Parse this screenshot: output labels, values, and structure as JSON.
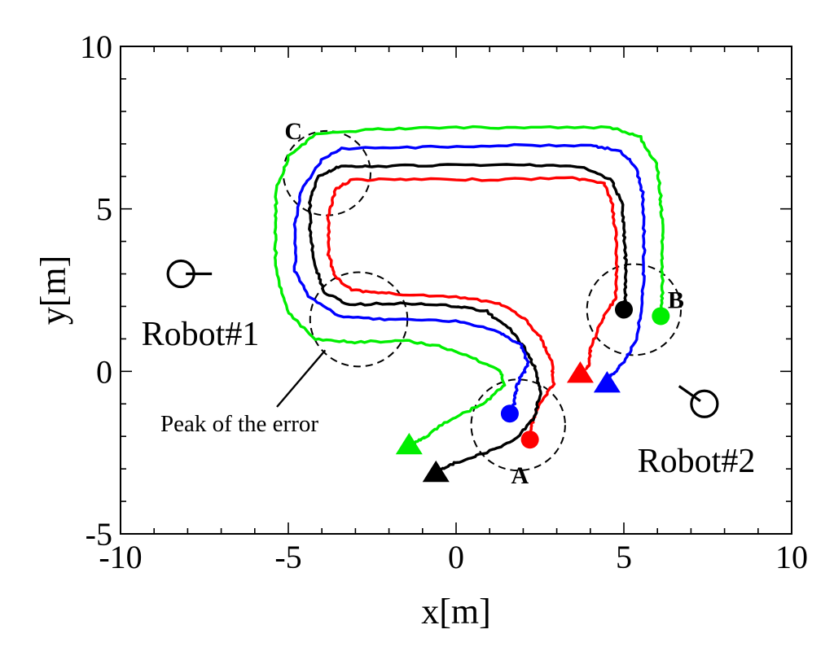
{
  "chart_data": {
    "type": "line",
    "xlabel": "x[m]",
    "ylabel": "y[m]",
    "xlim": [
      -10,
      10
    ],
    "ylim": [
      -5,
      10
    ],
    "xticks": [
      -10,
      -5,
      0,
      5,
      10
    ],
    "yticks": [
      -5,
      0,
      5,
      10
    ],
    "xtick_labels": [
      "-10",
      "-5",
      "0",
      "5",
      "10"
    ],
    "ytick_labels": [
      "-5",
      "0",
      "5",
      "10"
    ],
    "grid": false,
    "series": [
      {
        "color": "#ff0000",
        "points": [
          [
            2.2,
            -2.1
          ],
          [
            2.25,
            -1.6
          ],
          [
            2.5,
            -1.0
          ],
          [
            2.9,
            -0.4
          ],
          [
            2.85,
            0.3
          ],
          [
            2.55,
            1.0
          ],
          [
            2.05,
            1.6
          ],
          [
            1.3,
            2.1
          ],
          [
            0.0,
            2.3
          ],
          [
            -2.0,
            2.4
          ],
          [
            -3.1,
            2.5
          ],
          [
            -3.6,
            2.9
          ],
          [
            -3.8,
            3.6
          ],
          [
            -3.8,
            4.8
          ],
          [
            -3.6,
            5.6
          ],
          [
            -3.1,
            5.9
          ],
          [
            -1.5,
            5.9
          ],
          [
            1.0,
            5.9
          ],
          [
            3.5,
            5.95
          ],
          [
            4.4,
            5.8
          ],
          [
            4.65,
            5.2
          ],
          [
            4.75,
            4.3
          ],
          [
            4.8,
            3.2
          ],
          [
            4.75,
            2.2
          ],
          [
            4.35,
            1.6
          ],
          [
            4.0,
            0.7
          ],
          [
            3.95,
            0.2
          ],
          [
            3.9,
            0.05
          ]
        ],
        "start_marker": [
          2.2,
          -2.1
        ],
        "end_marker": [
          3.7,
          -0.05
        ]
      },
      {
        "color": "#000000",
        "points": [
          [
            5.0,
            1.9
          ],
          [
            5.05,
            2.4
          ],
          [
            5.05,
            3.4
          ],
          [
            5.0,
            4.4
          ],
          [
            4.95,
            5.2
          ],
          [
            4.6,
            5.9
          ],
          [
            3.8,
            6.3
          ],
          [
            2.0,
            6.35
          ],
          [
            -0.5,
            6.35
          ],
          [
            -2.5,
            6.3
          ],
          [
            -3.5,
            6.3
          ],
          [
            -4.1,
            6.0
          ],
          [
            -4.35,
            5.3
          ],
          [
            -4.35,
            4.3
          ],
          [
            -4.2,
            3.2
          ],
          [
            -3.9,
            2.4
          ],
          [
            -3.2,
            2.05
          ],
          [
            -1.5,
            2.1
          ],
          [
            0.0,
            2.0
          ],
          [
            0.9,
            1.85
          ],
          [
            1.6,
            1.3
          ],
          [
            2.05,
            0.7
          ],
          [
            2.4,
            0.0
          ],
          [
            2.5,
            -0.7
          ],
          [
            2.35,
            -1.4
          ],
          [
            1.75,
            -2.1
          ],
          [
            0.9,
            -2.5
          ],
          [
            0.0,
            -2.8
          ],
          [
            -0.5,
            -3.05
          ]
        ],
        "start_marker": [
          5.0,
          1.9
        ],
        "end_marker": [
          -0.6,
          -3.1
        ]
      },
      {
        "color": "#0000ff",
        "points": [
          [
            1.7,
            -1.3
          ],
          [
            1.75,
            -0.8
          ],
          [
            1.85,
            -0.3
          ],
          [
            2.15,
            0.2
          ],
          [
            1.95,
            0.8
          ],
          [
            1.3,
            1.2
          ],
          [
            0.0,
            1.55
          ],
          [
            -2.0,
            1.6
          ],
          [
            -3.5,
            1.7
          ],
          [
            -4.4,
            2.3
          ],
          [
            -4.8,
            3.1
          ],
          [
            -4.8,
            4.5
          ],
          [
            -4.6,
            5.6
          ],
          [
            -4.0,
            6.5
          ],
          [
            -3.4,
            6.85
          ],
          [
            -1.0,
            6.9
          ],
          [
            1.5,
            6.95
          ],
          [
            4.0,
            6.95
          ],
          [
            4.85,
            6.8
          ],
          [
            5.35,
            6.3
          ],
          [
            5.55,
            5.5
          ],
          [
            5.6,
            4.3
          ],
          [
            5.6,
            3.2
          ],
          [
            5.55,
            2.2
          ],
          [
            5.4,
            1.0
          ],
          [
            5.0,
            0.3
          ],
          [
            4.6,
            -0.15
          ],
          [
            4.5,
            -0.3
          ]
        ],
        "start_marker": [
          1.6,
          -1.3
        ],
        "end_marker": [
          4.5,
          -0.35
        ]
      },
      {
        "color": "#00ee00",
        "points": [
          [
            6.1,
            1.7
          ],
          [
            6.15,
            2.5
          ],
          [
            6.15,
            3.5
          ],
          [
            6.15,
            4.5
          ],
          [
            6.1,
            5.3
          ],
          [
            6.0,
            6.3
          ],
          [
            5.5,
            7.2
          ],
          [
            4.6,
            7.5
          ],
          [
            2.0,
            7.5
          ],
          [
            -0.5,
            7.5
          ],
          [
            -2.5,
            7.45
          ],
          [
            -4.2,
            7.3
          ],
          [
            -5.0,
            6.6
          ],
          [
            -5.35,
            5.6
          ],
          [
            -5.4,
            4.3
          ],
          [
            -5.35,
            3.0
          ],
          [
            -5.0,
            1.8
          ],
          [
            -4.2,
            1.0
          ],
          [
            -3.0,
            0.9
          ],
          [
            -1.5,
            0.95
          ],
          [
            -0.6,
            0.8
          ],
          [
            0.3,
            0.5
          ],
          [
            1.3,
            0.05
          ],
          [
            1.45,
            -0.4
          ],
          [
            0.8,
            -1.0
          ],
          [
            -0.2,
            -1.5
          ],
          [
            -0.9,
            -2.0
          ],
          [
            -1.3,
            -2.25
          ]
        ],
        "start_marker": [
          6.1,
          1.7
        ],
        "end_marker": [
          -1.4,
          -2.25
        ]
      }
    ],
    "regions": [
      {
        "label": "A",
        "center": [
          1.85,
          -1.65
        ],
        "radius": 1.4
      },
      {
        "label": "B",
        "center": [
          5.3,
          1.9
        ],
        "radius": 1.4
      },
      {
        "label": "C",
        "center": [
          -3.85,
          6.1
        ],
        "radius": 1.3
      },
      {
        "label": "",
        "center": [
          -2.9,
          1.6
        ],
        "radius": 1.45
      }
    ],
    "annotations": [
      {
        "text": "Peak of the error",
        "points_to": [
          -3.9,
          0.65
        ]
      }
    ],
    "robots": [
      {
        "label": "Robot#1",
        "position": [
          -8.2,
          3.0
        ],
        "heading_deg": 0
      },
      {
        "label": "Robot#2",
        "position": [
          7.4,
          -1.0
        ],
        "heading_deg": 145
      }
    ]
  }
}
